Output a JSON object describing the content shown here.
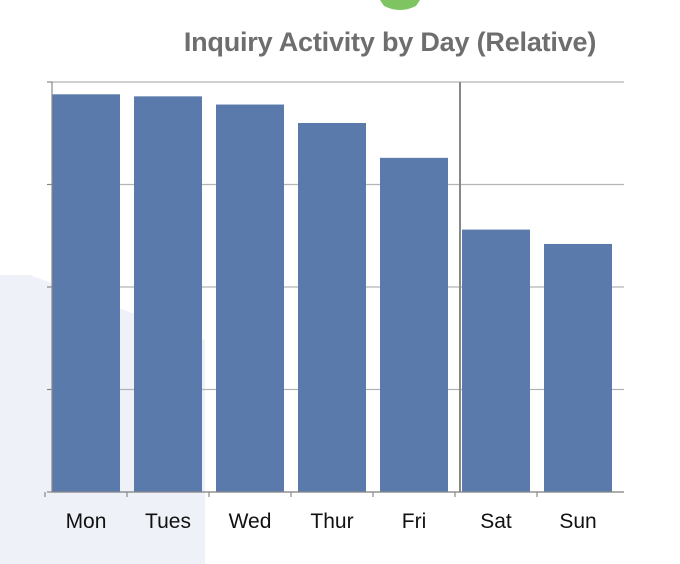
{
  "chart_data": {
    "type": "bar",
    "title": "Inquiry Activity by Day (Relative)",
    "xlabel": "",
    "ylabel": "",
    "categories": [
      "Mon",
      "Tues",
      "Wed",
      "Thur",
      "Fri",
      "Sat",
      "Sun"
    ],
    "values": [
      97,
      96.5,
      94.5,
      90,
      81.5,
      64,
      60.5
    ],
    "ylim": [
      0,
      100
    ],
    "grid": true,
    "legend": "none",
    "divider_after_category": "Fri",
    "bar_color": "#5a7aab"
  },
  "colors": {
    "title": "#6e6e6e",
    "grid": "#b3b3b3",
    "background_shape": "#eef1f8",
    "badge": "#7fc463"
  },
  "decor": {
    "badge_icon": "green-shield-icon"
  }
}
